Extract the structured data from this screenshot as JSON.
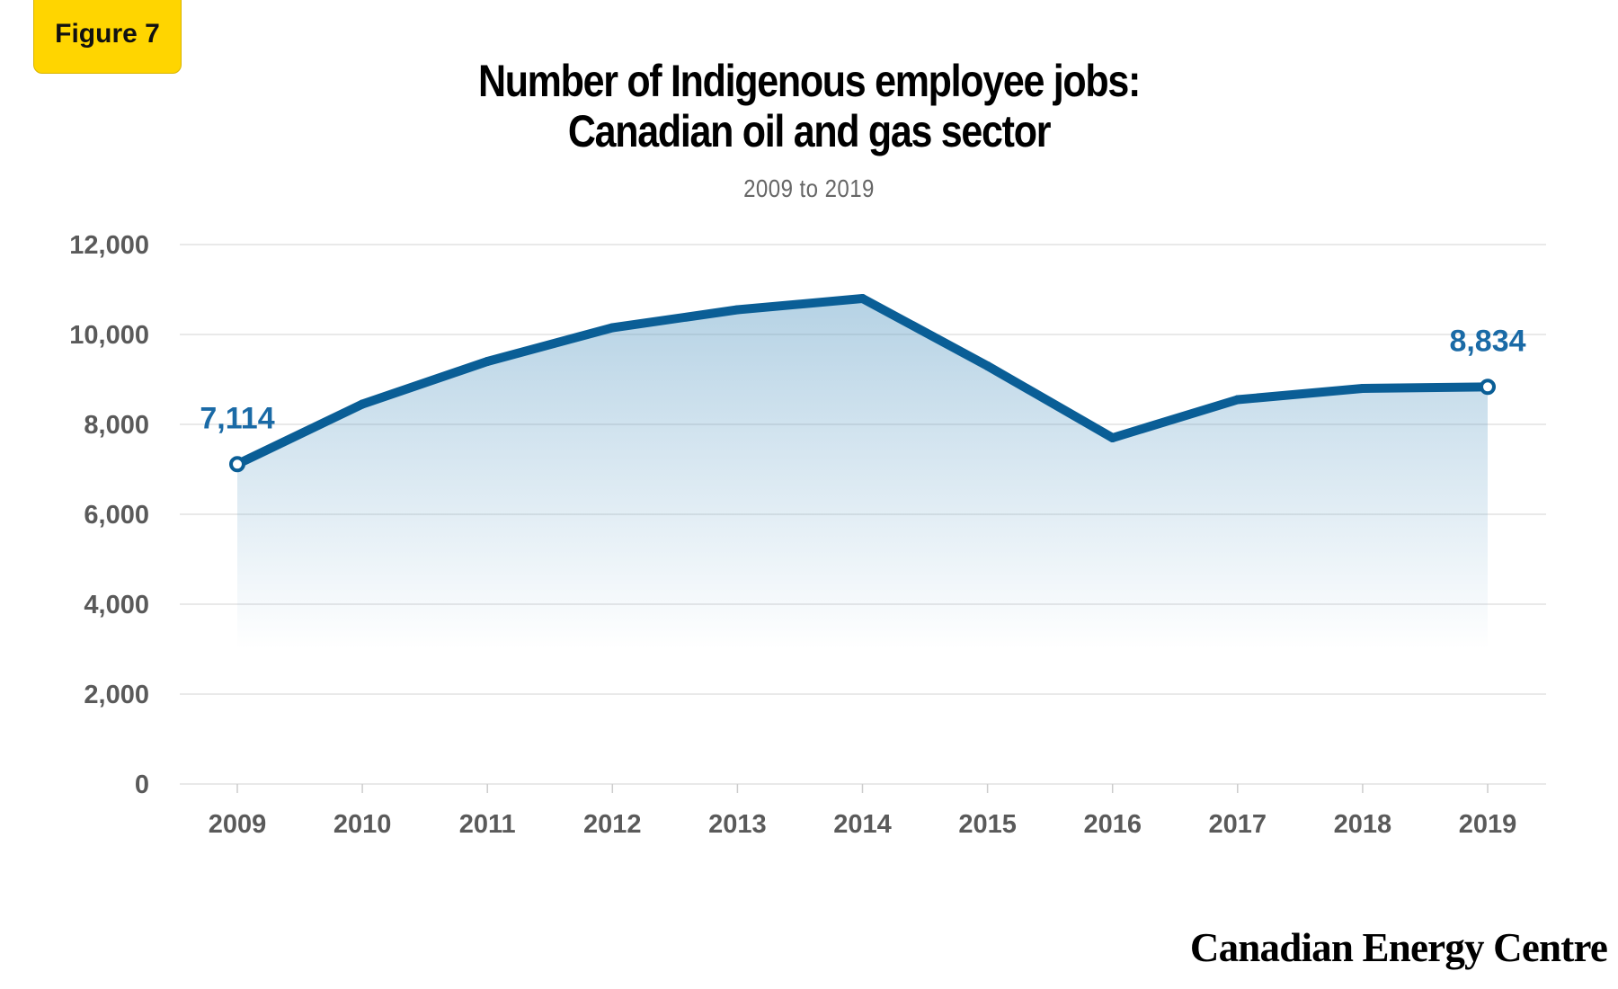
{
  "badge": "Figure 7",
  "title_lines": [
    "Number of Indigenous employee jobs:",
    "Canadian oil and gas sector"
  ],
  "subtitle": "2009 to 2019",
  "logo": "Canadian Energy Centre",
  "colors": {
    "line": "#0a5e96",
    "fill": "#5b9bc4",
    "badge": "#ffd500",
    "label": "#1a6aa6"
  },
  "chart_data": {
    "type": "area",
    "title": "Number of Indigenous employee jobs: Canadian oil and gas sector",
    "subtitle": "2009 to 2019",
    "x": [
      "2009",
      "2010",
      "2011",
      "2012",
      "2013",
      "2014",
      "2015",
      "2016",
      "2017",
      "2018",
      "2019"
    ],
    "values": [
      7114,
      8450,
      9400,
      10150,
      10550,
      10800,
      9300,
      7700,
      8550,
      8800,
      8834
    ],
    "ylim": [
      0,
      12000
    ],
    "yticks": [
      0,
      2000,
      4000,
      6000,
      8000,
      10000,
      12000
    ],
    "ytick_labels": [
      "0",
      "2,000",
      "4,000",
      "6,000",
      "8,000",
      "10,000",
      "12,000"
    ],
    "grid": true,
    "annotations": [
      {
        "index": 0,
        "text": "7,114"
      },
      {
        "index": 10,
        "text": "8,834"
      }
    ]
  }
}
